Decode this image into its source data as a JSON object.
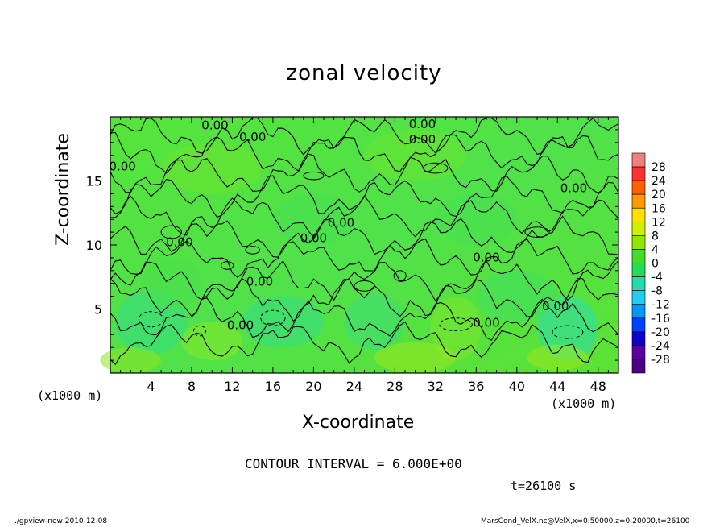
{
  "chart_data": {
    "type": "heatmap",
    "title": "zonal velocity",
    "xlabel": "X-coordinate",
    "ylabel": "Z-coordinate",
    "x_unit_left": "(x1000 m)",
    "x_unit_right": "(x1000 m)",
    "x_ticks": [
      4,
      8,
      12,
      16,
      20,
      24,
      28,
      32,
      36,
      40,
      44,
      48
    ],
    "y_ticks": [
      5,
      10,
      15
    ],
    "xlim": [
      0,
      50
    ],
    "ylim": [
      0,
      20
    ],
    "colorbar_levels": [
      28,
      24,
      20,
      16,
      12,
      8,
      4,
      0,
      -4,
      -8,
      -12,
      -16,
      -20,
      -24,
      -28
    ],
    "colorbar_colors": [
      "#f08080",
      "#ff3030",
      "#ff6000",
      "#ff9a00",
      "#ffe000",
      "#d0f000",
      "#90e800",
      "#44dd22",
      "#22dd55",
      "#22ddaa",
      "#22ccee",
      "#0096ff",
      "#0040ff",
      "#1000cc",
      "#5a00a0"
    ],
    "contour_labels": [
      {
        "text": "0.00",
        "x": 10.3,
        "y": 19.3
      },
      {
        "text": "0.00",
        "x": 14.0,
        "y": 18.4
      },
      {
        "text": "0.00",
        "x": 30.7,
        "y": 19.4
      },
      {
        "text": "0.00",
        "x": 30.7,
        "y": 18.2
      },
      {
        "text": "0.00",
        "x": 1.2,
        "y": 16.1
      },
      {
        "text": "0.00",
        "x": 45.6,
        "y": 14.4
      },
      {
        "text": "0.00",
        "x": 22.7,
        "y": 11.7
      },
      {
        "text": "0.00",
        "x": 6.8,
        "y": 10.2
      },
      {
        "text": "0.00",
        "x": 20.0,
        "y": 10.5
      },
      {
        "text": "0.00",
        "x": 37.0,
        "y": 9.0
      },
      {
        "text": "0.00",
        "x": 14.7,
        "y": 7.1
      },
      {
        "text": "0.00",
        "x": 43.8,
        "y": 5.2
      },
      {
        "text": "0.00",
        "x": 12.8,
        "y": 3.7
      },
      {
        "text": "0.00",
        "x": 37.0,
        "y": 3.9
      }
    ],
    "contour_interval_text": "CONTOUR INTERVAL = 6.000E+00",
    "time_text": "t=26100 s",
    "grid": false,
    "legend": "colorbar-right"
  },
  "footer": {
    "left": "./gpview-new  2010-12-08",
    "right": "MarsCond_VelX.nc@VelX,x=0:50000,z=0:20000,t=26100"
  }
}
